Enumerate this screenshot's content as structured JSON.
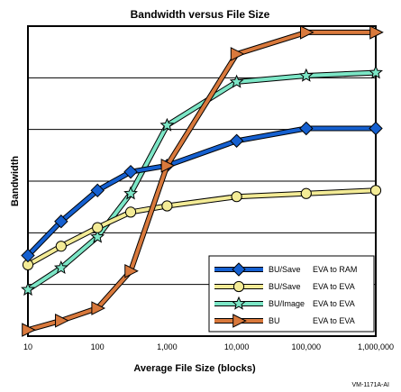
{
  "chart_data": {
    "type": "line",
    "title": "Bandwidth versus File Size",
    "xlabel": "Average File Size (blocks)",
    "ylabel": "Bandwidth",
    "x_scale": "log",
    "xlim": [
      10,
      1000000
    ],
    "ylim": [
      0,
      100
    ],
    "x_ticks": [
      "10",
      "100",
      "1,000",
      "10,000",
      "100,000",
      "1,000,000"
    ],
    "x": [
      10,
      30,
      100,
      300,
      1000,
      10000,
      100000,
      1000000
    ],
    "grid": true,
    "legend_position": "bottom-right",
    "series": [
      {
        "name": "BU/Save",
        "detail": "EVA to RAM",
        "color": "#1560d0",
        "marker": "diamond",
        "values": [
          26,
          37,
          47,
          53,
          55,
          63,
          67,
          67
        ]
      },
      {
        "name": "BU/Save",
        "detail": "EVA to EVA",
        "color": "#f3eb96",
        "marker": "circle",
        "values": [
          23,
          29,
          35,
          40,
          42,
          45,
          46,
          47
        ]
      },
      {
        "name": "BU/Image",
        "detail": "EVA to EVA",
        "color": "#7ce6c6",
        "marker": "star",
        "values": [
          15,
          22,
          32,
          46,
          68,
          82,
          84,
          85
        ]
      },
      {
        "name": "BU",
        "detail": "EVA to EVA",
        "color": "#d9793c",
        "marker": "triangle",
        "values": [
          2,
          5,
          9,
          21,
          55,
          91,
          98,
          98
        ]
      }
    ]
  },
  "credit": "VM-1171A-AI"
}
